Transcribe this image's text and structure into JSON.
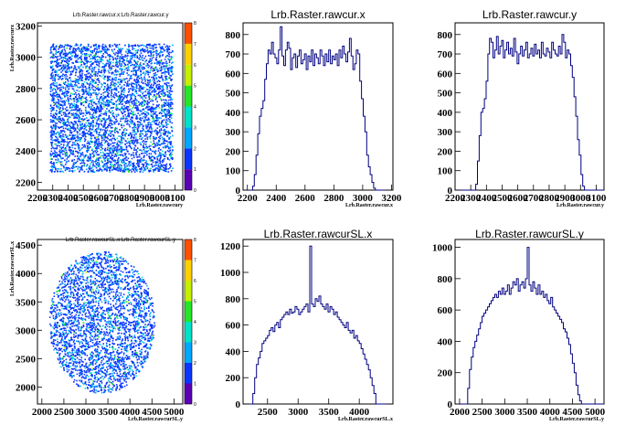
{
  "chart_data": [
    {
      "type": "heatmap",
      "title": "Lrb.Raster.rawcur.x:Lrb.Raster.rawcur.y",
      "xlabel": "Lrb.Raster.rawcury",
      "ylabel": "Lrb.Raster.rawcurx",
      "xticks": [
        "2200",
        "2300",
        "2400",
        "2500",
        "2600",
        "2700",
        "2800",
        "2900",
        "3000",
        "3100"
      ],
      "yticks": [
        "2200",
        "2400",
        "2600",
        "2800",
        "3000",
        "3200"
      ],
      "xlim": [
        2200,
        3150
      ],
      "ylim": [
        2150,
        3220
      ],
      "shape": "square",
      "region": [
        2280,
        3080,
        2270,
        3090
      ],
      "palette_ticks": [
        "0",
        "1",
        "2",
        "3",
        "4",
        "5",
        "6",
        "7",
        "8"
      ],
      "zlim": [
        0,
        8
      ]
    },
    {
      "type": "histogram",
      "title": "Lrb.Raster.rawcur.x",
      "xlabel": "Lrb.Raster.rawcur.x",
      "xticks": [
        "2200",
        "2400",
        "2600",
        "2800",
        "3000",
        "3200"
      ],
      "yticks": [
        "0",
        "100",
        "200",
        "300",
        "400",
        "500",
        "600",
        "700",
        "800"
      ],
      "xlim": [
        2170,
        3210
      ],
      "ylim": [
        0,
        860
      ],
      "bins": [
        2200,
        2212,
        2224,
        2236,
        2248,
        2260,
        2272,
        2284,
        2296,
        2308,
        2320,
        2332,
        2344,
        2356,
        2368,
        2380,
        2392,
        2404,
        2416,
        2428,
        2440,
        2452,
        2464,
        2476,
        2488,
        2500,
        2512,
        2524,
        2536,
        2548,
        2560,
        2572,
        2584,
        2596,
        2608,
        2620,
        2632,
        2644,
        2656,
        2668,
        2680,
        2692,
        2704,
        2716,
        2728,
        2740,
        2752,
        2764,
        2776,
        2788,
        2800,
        2812,
        2824,
        2836,
        2848,
        2860,
        2872,
        2884,
        2896,
        2908,
        2920,
        2932,
        2944,
        2956,
        2968,
        2980,
        2992,
        3004,
        3016,
        3028,
        3040,
        3052,
        3064,
        3076,
        3088,
        3100,
        3112,
        3124,
        3136,
        3148
      ],
      "values": [
        0,
        0,
        0,
        20,
        80,
        180,
        290,
        380,
        420,
        460,
        570,
        650,
        720,
        700,
        760,
        700,
        680,
        650,
        720,
        840,
        690,
        640,
        720,
        760,
        730,
        620,
        680,
        700,
        630,
        690,
        720,
        650,
        670,
        700,
        620,
        690,
        660,
        720,
        640,
        700,
        680,
        650,
        720,
        690,
        640,
        700,
        660,
        720,
        650,
        690,
        670,
        700,
        640,
        720,
        680,
        740,
        700,
        660,
        710,
        780,
        690,
        620,
        650,
        720,
        700,
        560,
        470,
        380,
        300,
        180,
        120,
        80,
        40,
        10,
        0,
        0,
        0,
        0,
        0,
        0
      ]
    },
    {
      "type": "histogram",
      "title": "Lrb.Raster.rawcur.y",
      "xlabel": "Lrb.Raster.rawcur.y",
      "xticks": [
        "2200",
        "2300",
        "2400",
        "2500",
        "2600",
        "2700",
        "2800",
        "2900",
        "3000",
        "3100"
      ],
      "yticks": [
        "0",
        "100",
        "200",
        "300",
        "400",
        "500",
        "600",
        "700",
        "800"
      ],
      "xlim": [
        2200,
        3150
      ],
      "ylim": [
        0,
        860
      ],
      "bins": [
        2200,
        2211,
        2222,
        2233,
        2244,
        2255,
        2266,
        2277,
        2288,
        2299,
        2310,
        2321,
        2332,
        2343,
        2354,
        2365,
        2376,
        2387,
        2398,
        2409,
        2420,
        2431,
        2442,
        2453,
        2464,
        2475,
        2486,
        2497,
        2508,
        2519,
        2530,
        2541,
        2552,
        2563,
        2574,
        2585,
        2596,
        2607,
        2618,
        2629,
        2640,
        2651,
        2662,
        2673,
        2684,
        2695,
        2706,
        2717,
        2728,
        2739,
        2750,
        2761,
        2772,
        2783,
        2794,
        2805,
        2816,
        2827,
        2838,
        2849,
        2860,
        2871,
        2882,
        2893,
        2904,
        2915,
        2926,
        2937,
        2948,
        2959,
        2970,
        2981,
        2992,
        3003,
        3014,
        3025,
        3036,
        3047,
        3058,
        3069,
        3080,
        3091,
        3102,
        3113,
        3124,
        3135
      ],
      "values": [
        0,
        0,
        0,
        0,
        0,
        0,
        0,
        0,
        0,
        0,
        0,
        0,
        30,
        150,
        280,
        400,
        420,
        470,
        560,
        700,
        780,
        760,
        680,
        720,
        790,
        700,
        740,
        770,
        680,
        720,
        760,
        700,
        730,
        690,
        780,
        710,
        650,
        700,
        740,
        690,
        720,
        760,
        680,
        700,
        730,
        690,
        750,
        700,
        720,
        680,
        760,
        700,
        690,
        730,
        710,
        680,
        760,
        720,
        700,
        690,
        740,
        700,
        800,
        760,
        680,
        720,
        700,
        640,
        580,
        480,
        380,
        260,
        180,
        80,
        20,
        0,
        0,
        0,
        0,
        0,
        0,
        0,
        0,
        0,
        0,
        0
      ]
    },
    {
      "type": "heatmap",
      "title": "Lrb.Raster.rawcurSL.x:Lrb.Raster.rawcurSL.y",
      "xlabel": "Lrb.Raster.rawcurSL.y",
      "ylabel": "Lrb.Raster.rawcurSL.x",
      "xticks": [
        "2000",
        "2500",
        "3000",
        "3500",
        "4000",
        "4500",
        "5000"
      ],
      "yticks": [
        "2000",
        "2500",
        "3000",
        "3500",
        "4000",
        "4500"
      ],
      "xlim": [
        1900,
        5200
      ],
      "ylim": [
        1700,
        4600
      ],
      "shape": "circle",
      "region": [
        2150,
        4550,
        1900,
        4400
      ],
      "palette_ticks": [
        "0",
        "1",
        "2",
        "3",
        "4",
        "5",
        "6",
        "7",
        "8"
      ],
      "zlim": [
        0,
        8
      ]
    },
    {
      "type": "histogram",
      "title": "Lrb.Raster.rawcurSL.x",
      "xlabel": "Lrb.Raster.rawcurSL.x",
      "xticks": [
        "2500",
        "3000",
        "3500",
        "4000"
      ],
      "yticks": [
        "0",
        "200",
        "400",
        "600",
        "800",
        "1000",
        "1200"
      ],
      "xlim": [
        2100,
        4550
      ],
      "ylim": [
        0,
        1250
      ],
      "bins": [
        2200,
        2230,
        2260,
        2290,
        2320,
        2350,
        2380,
        2410,
        2440,
        2470,
        2500,
        2530,
        2560,
        2590,
        2620,
        2650,
        2680,
        2710,
        2740,
        2770,
        2800,
        2830,
        2860,
        2890,
        2920,
        2950,
        2980,
        3010,
        3040,
        3070,
        3100,
        3130,
        3160,
        3190,
        3220,
        3250,
        3280,
        3310,
        3340,
        3370,
        3400,
        3430,
        3460,
        3490,
        3520,
        3550,
        3580,
        3610,
        3640,
        3670,
        3700,
        3730,
        3760,
        3790,
        3820,
        3850,
        3880,
        3910,
        3940,
        3970,
        4000,
        4030,
        4060,
        4090,
        4120,
        4150,
        4180,
        4210,
        4240,
        4270,
        4300,
        4330,
        4360,
        4390,
        4420
      ],
      "values": [
        0,
        0,
        80,
        200,
        300,
        350,
        400,
        460,
        480,
        500,
        520,
        560,
        580,
        550,
        600,
        620,
        580,
        640,
        660,
        680,
        700,
        680,
        720,
        690,
        700,
        740,
        720,
        680,
        700,
        720,
        740,
        760,
        700,
        1200,
        760,
        740,
        800,
        780,
        820,
        760,
        740,
        720,
        760,
        700,
        740,
        720,
        680,
        700,
        660,
        640,
        620,
        600,
        580,
        620,
        560,
        540,
        560,
        500,
        520,
        480,
        460,
        420,
        380,
        340,
        300,
        260,
        200,
        140,
        80,
        0,
        0,
        0,
        0,
        0,
        0
      ]
    },
    {
      "type": "histogram",
      "title": "Lrb.Raster.rawcurSL.y",
      "xlabel": "Lrb.Raster.rawcurSL.y",
      "xticks": [
        "2000",
        "2500",
        "3000",
        "3500",
        "4000",
        "4500",
        "5000"
      ],
      "yticks": [
        "0",
        "200",
        "400",
        "600",
        "800",
        "1000"
      ],
      "xlim": [
        1900,
        5200
      ],
      "ylim": [
        0,
        1050
      ],
      "bins": [
        1900,
        1940,
        1980,
        2020,
        2060,
        2100,
        2140,
        2180,
        2220,
        2260,
        2300,
        2340,
        2380,
        2420,
        2460,
        2500,
        2540,
        2580,
        2620,
        2660,
        2700,
        2740,
        2780,
        2820,
        2860,
        2900,
        2940,
        2980,
        3020,
        3060,
        3100,
        3140,
        3180,
        3220,
        3260,
        3300,
        3340,
        3380,
        3420,
        3460,
        3500,
        3540,
        3580,
        3620,
        3660,
        3700,
        3740,
        3780,
        3820,
        3860,
        3900,
        3940,
        3980,
        4020,
        4060,
        4100,
        4140,
        4180,
        4220,
        4260,
        4300,
        4340,
        4380,
        4420,
        4460,
        4500,
        4540,
        4580,
        4620,
        4660,
        4700,
        4740,
        4780,
        4820,
        4860,
        4900,
        4940,
        4980,
        5020,
        5060,
        5100,
        5140
      ],
      "values": [
        0,
        0,
        0,
        0,
        0,
        0,
        0,
        100,
        220,
        300,
        360,
        400,
        440,
        480,
        520,
        560,
        580,
        600,
        620,
        640,
        660,
        680,
        700,
        680,
        720,
        700,
        740,
        700,
        720,
        760,
        700,
        740,
        780,
        760,
        800,
        720,
        760,
        780,
        740,
        800,
        1000,
        760,
        720,
        780,
        740,
        700,
        760,
        700,
        720,
        680,
        700,
        660,
        640,
        680,
        620,
        600,
        580,
        560,
        540,
        520,
        480,
        460,
        420,
        380,
        320,
        260,
        200,
        120,
        60,
        20,
        0,
        0,
        0,
        0,
        0,
        0,
        0,
        0,
        0,
        0,
        0,
        0
      ]
    }
  ]
}
